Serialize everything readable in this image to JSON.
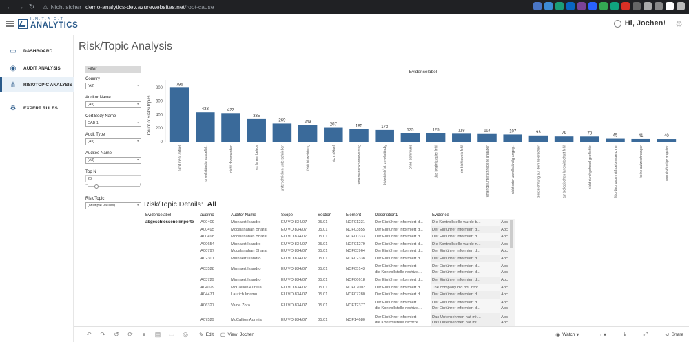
{
  "browser": {
    "security_label": "Nicht sicher",
    "host": "demo-analytics-dev.azurewebsites.net",
    "path": "/root-cause",
    "extension_colors": [
      "#4a76c5",
      "#3d8bd6",
      "#1b9e77",
      "#0a66c2",
      "#7b4397",
      "#2962ff",
      "#34a853",
      "#10a37f",
      "#d93025",
      "#666666",
      "#aaaaaa",
      "#888888",
      "#ffffff",
      "#bbbbbb"
    ]
  },
  "header": {
    "logo_top": "I.N.T.A.C.T",
    "logo_bottom": "ANALYTICS",
    "greeting": "Hi, Jochen!"
  },
  "sidebar": {
    "items": [
      {
        "label": "DASHBOARD",
        "icon": "monitor-icon"
      },
      {
        "label": "AUDIT ANALYSIS",
        "icon": "globe-icon"
      },
      {
        "label": "RISK/TOPIC ANALYSIS",
        "icon": "network-icon"
      },
      {
        "label": "EXPERT RULES",
        "icon": "rules-icon"
      }
    ]
  },
  "page": {
    "title": "Risk/Topic Analysis"
  },
  "filters": {
    "header": "Filter",
    "country": {
      "label": "Country",
      "value": "(All)"
    },
    "auditor_name": {
      "label": "Auditor Name",
      "value": "(All)"
    },
    "cert_body": {
      "label": "Cert Body Name",
      "value": "CAB 1"
    },
    "audit_type": {
      "label": "Audit Type",
      "value": "(All)"
    },
    "auditee_name": {
      "label": "Auditee Name",
      "value": "(All)"
    },
    "top_n": {
      "label": "Top N",
      "value": "20"
    },
    "risk_topic": {
      "label": "Risk/Topic",
      "value": "(Multiple values)"
    }
  },
  "chart_data": {
    "type": "bar",
    "title": "Evidencelabel",
    "ylabel": "Count of Risks/Topics ...",
    "ylim": [
      0,
      850
    ],
    "yticks": [
      0,
      200,
      400,
      600,
      800
    ],
    "categories": [
      "nicht mehr aktuell",
      "unvollständig ausgefül...",
      "nicht dokumentiert",
      "es fehlen belege",
      "unterschrieben unterschrieben",
      "fehlt biowebbung",
      "nicht aktuell",
      "fehlerhafter kontrollvertrag",
      "biobetrieb´ist unvollständig",
      "ohne biohinweis",
      "das begleitpapier fehlt",
      "ein biohinweis fehlt",
      "fehlende unterschriebene angaben",
      "nicht oder unvollständig angeg...",
      "fehlende biokennzeichnung auf dem lieferschein",
      "bezug zur biologischen landwirtschaft fehlt",
      "nicht durchgehend gepflichtet",
      "das produkt nicht ordnungsgemäß gekennzeichnet",
      "keine aufzeichnungen",
      "unvollständige angaben"
    ],
    "values": [
      796,
      433,
      422,
      335,
      269,
      243,
      207,
      185,
      173,
      125,
      125,
      118,
      114,
      107,
      93,
      79,
      78,
      45,
      41,
      40
    ],
    "bar_color": "#3a6a9a"
  },
  "details": {
    "title_prefix": "Risk/Topic Details:",
    "title_value": "All",
    "headers": [
      "Evidencelabel",
      "auditno",
      "Auditor Name",
      "Scope",
      "Section",
      "Element",
      "Description1",
      "Evidence",
      ""
    ],
    "group_label": "abgeschlossene importe",
    "rows": [
      {
        "auditno": "A00409",
        "name": "Minnaert Isandro",
        "scope": "EU VO 834/07",
        "section": "05.01",
        "element": "NCF01231",
        "desc": "Der Einführer informiert d...",
        "evidence": "Die Kontrollstelle wurde b...",
        "abc": "Abc"
      },
      {
        "auditno": "A00495",
        "name": "Mccalanahan Bharat",
        "scope": "EU VO 834/07",
        "section": "05.01",
        "element": "NCF03855",
        "desc": "Der Einführer informiert d...",
        "evidence": "Der Einführer informiert d...",
        "abc": "Abc"
      },
      {
        "auditno": "A00498",
        "name": "Mccalanahan Bharat",
        "scope": "EU VO 834/07",
        "section": "05.01",
        "element": "NCF00333",
        "desc": "Der Einführer informiert d...",
        "evidence": "Der Einführer informiert d...",
        "abc": "Abc"
      },
      {
        "auditno": "A00654",
        "name": "Minnaert Isandro",
        "scope": "EU VO 834/07",
        "section": "05.01",
        "element": "NCF01279",
        "desc": "Der Einführer informiert d...",
        "evidence": "Die Kontrollstelle wurde n...",
        "abc": "Abc"
      },
      {
        "auditno": "A00797",
        "name": "Mccalanahan Bharat",
        "scope": "EU VO 834/07",
        "section": "05.01",
        "element": "NCF03964",
        "desc": "Der Einführer informiert d...",
        "evidence": "Der Einführer informiert d...",
        "abc": "Abc"
      },
      {
        "auditno": "A02301",
        "name": "Minnaert Isandro",
        "scope": "EU VO 834/07",
        "section": "05.01",
        "element": "NCF02338",
        "desc": "Der Einführer informiert d...",
        "evidence": "Der Einführer informiert d...",
        "abc": "Abc"
      },
      {
        "auditno": "A03528",
        "name": "Minnaert Isandro",
        "scope": "EU VO 834/07",
        "section": "05.01",
        "element": "NCF05143",
        "desc": "Der Einführer informiert",
        "desc2": "die Kontrollstelle rechtze...",
        "evidence": "Der Einführer informiert d...",
        "evidence2": "Der Einführer informiert d...",
        "abc": "Abc",
        "abc2": "Abc"
      },
      {
        "auditno": "A03729",
        "name": "Minnaert Isandro",
        "scope": "EU VO 834/07",
        "section": "05.01",
        "element": "NCF06618",
        "desc": "Der Einführer informiert d...",
        "evidence": "Der Einführer informiert d...",
        "abc": "Abc"
      },
      {
        "auditno": "A04029",
        "name": "McCallion Aurelia",
        "scope": "EU VO 834/07",
        "section": "05.01",
        "element": "NCF07002",
        "desc": "Der Einführer informiert d...",
        "evidence": "The company did not infor...",
        "abc": "Abc"
      },
      {
        "auditno": "A04471",
        "name": "Laurich Imamu",
        "scope": "EU VO 834/07",
        "section": "05.01",
        "element": "NCF07280",
        "desc": "Der Einführer informiert d...",
        "evidence": "Der Einführer informiert d...",
        "abc": "Abc"
      },
      {
        "auditno": "A06327",
        "name": "Vaine Zora",
        "scope": "EU VO 834/07",
        "section": "05.01",
        "element": "NCF12377",
        "desc": "Der Einführer informiert",
        "desc2": "die Kontrollstelle rechtze...",
        "evidence": "Der Einführer informiert d...",
        "evidence2": "Der Einführer informiert d...",
        "abc": "Abc",
        "abc2": "Abc"
      },
      {
        "auditno": "A07529",
        "name": "McCallion Aurelia",
        "scope": "EU VO 834/07",
        "section": "05.01",
        "element": "NCF14680",
        "desc": "Der Einführer informiert",
        "desc2": "die Kontrollstelle rechtze...",
        "evidence": "Das Unternehmen hat mit...",
        "evidence2": "Das Unternehmen hat mit...",
        "abc": "Abc",
        "abc2": "Abc"
      }
    ]
  },
  "toolbar": {
    "edit_label": "Edit",
    "view_label": "View: Jochen",
    "watch_label": "Watch",
    "share_label": "Share"
  }
}
